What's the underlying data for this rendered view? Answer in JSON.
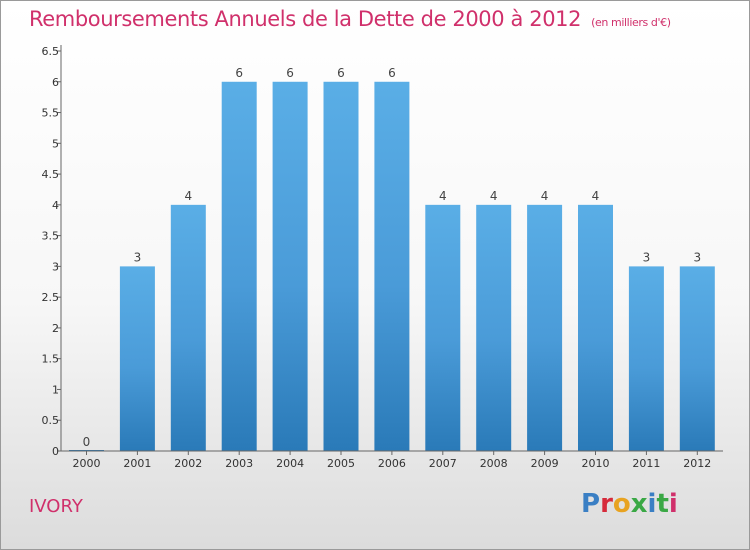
{
  "page": {
    "title": "Remboursements Annuels de la Dette de 2000 à 2012",
    "unit": "(en milliers d'€)",
    "commune": "IVORY",
    "logo": "Proxiti"
  },
  "colors": {
    "title": "#d0306b",
    "bar_light": "#5aaee6",
    "bar_dark": "#2a7ab8",
    "logo_letters": [
      "#3a7fc4",
      "#d62a3a",
      "#e8a321",
      "#3aa845",
      "#3a7fc4",
      "#3aa845",
      "#d0306b"
    ]
  },
  "chart_data": {
    "type": "bar",
    "title": "Remboursements Annuels de la Dette de 2000 à 2012",
    "xlabel": "",
    "ylabel": "",
    "categories": [
      "2000",
      "2001",
      "2002",
      "2003",
      "2004",
      "2005",
      "2006",
      "2007",
      "2008",
      "2009",
      "2010",
      "2011",
      "2012"
    ],
    "values": [
      0,
      3,
      4,
      6,
      6,
      6,
      6,
      4,
      4,
      4,
      4,
      3,
      3
    ],
    "data_labels": [
      "0",
      "3",
      "4",
      "6",
      "6",
      "6",
      "6",
      "4",
      "4",
      "4",
      "4",
      "3",
      "3"
    ],
    "ylim": [
      0,
      6.5
    ],
    "yticks": [
      "0",
      "0.5",
      "1",
      "1.5",
      "2",
      "2.5",
      "3",
      "3.5",
      "4",
      "4.5",
      "5",
      "5.5",
      "6",
      "6.5"
    ],
    "grid": false
  }
}
